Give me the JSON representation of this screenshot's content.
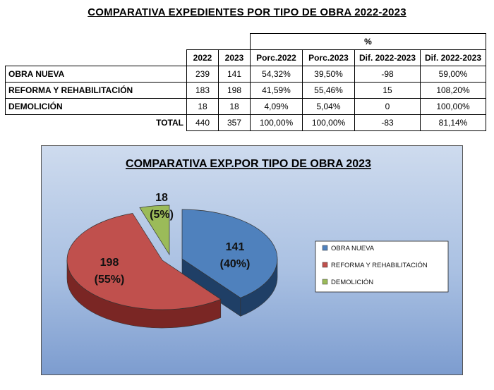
{
  "page_title": "COMPARATIVA EXPEDIENTES POR TIPO DE OBRA 2022-2023",
  "table": {
    "group_header": "%",
    "headers": [
      "2022",
      "2023",
      "Porc.2022",
      "Porc.2023",
      "Dif. 2022-2023",
      "Dif. 2022-2023"
    ],
    "rows": [
      {
        "label": "OBRA NUEVA",
        "cells": [
          "239",
          "141",
          "54,32%",
          "39,50%",
          "-98",
          "59,00%"
        ]
      },
      {
        "label": "REFORMA Y REHABILITACIÓN",
        "cells": [
          "183",
          "198",
          "41,59%",
          "55,46%",
          "15",
          "108,20%"
        ]
      },
      {
        "label": "DEMOLICIÓN",
        "cells": [
          "18",
          "18",
          "4,09%",
          "5,04%",
          "0",
          "100,00%"
        ]
      }
    ],
    "total": {
      "label": "TOTAL",
      "cells": [
        "440",
        "357",
        "100,00%",
        "100,00%",
        "-83",
        "81,14%"
      ]
    }
  },
  "chart_data": {
    "type": "pie",
    "title": "COMPARATIVA EXP.POR TIPO DE OBRA 2023",
    "categories": [
      "OBRA NUEVA",
      "REFORMA Y REHABILITACIÓN",
      "DEMOLICIÓN"
    ],
    "values": [
      141,
      198,
      18
    ],
    "labels": [
      {
        "value": "141",
        "percent": "(40%)"
      },
      {
        "value": "198",
        "percent": "(55%)"
      },
      {
        "value": "18",
        "percent": "(5%)"
      }
    ],
    "colors": [
      "#4F81BD",
      "#C0504D",
      "#9BBB59"
    ],
    "side_colors": [
      "#1F3F66",
      "#7A2624",
      "#5E7A2E"
    ],
    "style": "3d-exploded",
    "legend_position": "right"
  }
}
